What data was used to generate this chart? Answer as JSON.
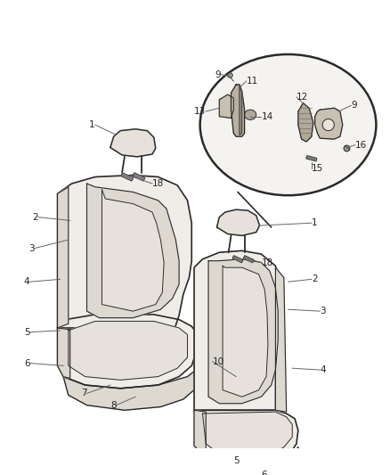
{
  "bg_color": "#ffffff",
  "line_color": "#2a2a2a",
  "label_color": "#222222",
  "figsize": [
    4.38,
    5.33
  ],
  "dpi": 100,
  "font_size": 7.5,
  "seat_fill": "#f0ede8",
  "seat_fill_dark": "#ddd8d0",
  "seat_fill_mid": "#e6e2db",
  "ellipse_fill": "#f5f3ef"
}
